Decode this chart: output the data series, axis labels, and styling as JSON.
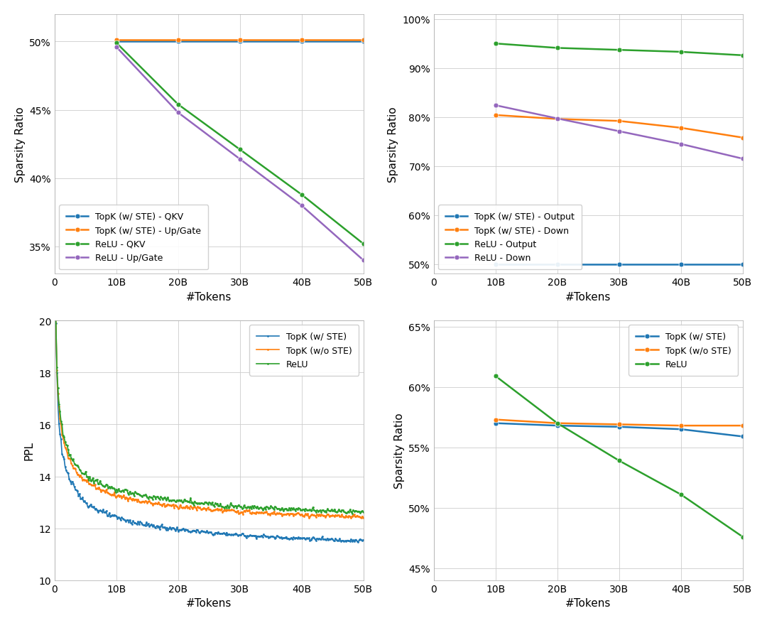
{
  "colors": {
    "blue": "#1f77b4",
    "orange": "#ff7f0e",
    "green": "#2ca02c",
    "purple": "#9467bd"
  },
  "top_left": {
    "xlabel": "#Tokens",
    "ylabel": "Sparsity Ratio",
    "xlim": [
      0,
      50000000000
    ],
    "ylim": [
      0.33,
      0.52
    ],
    "yticks": [
      0.35,
      0.4,
      0.45,
      0.5
    ],
    "xticks": [
      0,
      10000000000,
      20000000000,
      30000000000,
      40000000000,
      50000000000
    ],
    "xticklabels": [
      "0",
      "10B",
      "20B",
      "30B",
      "40B",
      "50B"
    ],
    "series": [
      {
        "label": "TopK (w/ STE) - QKV",
        "color": "#1f77b4",
        "x": [
          10000000000,
          20000000000,
          30000000000,
          40000000000,
          50000000000
        ],
        "y": [
          0.5,
          0.5,
          0.5,
          0.5,
          0.5
        ]
      },
      {
        "label": "TopK (w/ STE) - Up/Gate",
        "color": "#ff7f0e",
        "x": [
          10000000000,
          20000000000,
          30000000000,
          40000000000,
          50000000000
        ],
        "y": [
          0.501,
          0.501,
          0.501,
          0.501,
          0.501
        ]
      },
      {
        "label": "ReLU - QKV",
        "color": "#2ca02c",
        "x": [
          10000000000,
          20000000000,
          30000000000,
          40000000000,
          50000000000
        ],
        "y": [
          0.499,
          0.454,
          0.421,
          0.388,
          0.352
        ]
      },
      {
        "label": "ReLU - Up/Gate",
        "color": "#9467bd",
        "x": [
          10000000000,
          20000000000,
          30000000000,
          40000000000,
          50000000000
        ],
        "y": [
          0.496,
          0.448,
          0.414,
          0.38,
          0.34
        ]
      }
    ],
    "legend_loc": "lower left"
  },
  "top_right": {
    "xlabel": "#Tokens",
    "ylabel": "Sparsity Ratio",
    "xlim": [
      0,
      50000000000
    ],
    "ylim": [
      0.48,
      1.01
    ],
    "yticks": [
      0.5,
      0.6,
      0.7,
      0.8,
      0.9,
      1.0
    ],
    "xticks": [
      0,
      10000000000,
      20000000000,
      30000000000,
      40000000000,
      50000000000
    ],
    "xticklabels": [
      "0",
      "10B",
      "20B",
      "30B",
      "40B",
      "50B"
    ],
    "series": [
      {
        "label": "TopK (w/ STE) - Output",
        "color": "#1f77b4",
        "x": [
          10000000000,
          20000000000,
          30000000000,
          40000000000,
          50000000000
        ],
        "y": [
          0.5,
          0.5,
          0.5,
          0.5,
          0.5
        ]
      },
      {
        "label": "TopK (w/ STE) - Down",
        "color": "#ff7f0e",
        "x": [
          10000000000,
          20000000000,
          30000000000,
          40000000000,
          50000000000
        ],
        "y": [
          0.804,
          0.796,
          0.792,
          0.778,
          0.758
        ]
      },
      {
        "label": "ReLU - Output",
        "color": "#2ca02c",
        "x": [
          10000000000,
          20000000000,
          30000000000,
          40000000000,
          50000000000
        ],
        "y": [
          0.95,
          0.941,
          0.937,
          0.933,
          0.926
        ]
      },
      {
        "label": "ReLU - Down",
        "color": "#9467bd",
        "x": [
          10000000000,
          20000000000,
          30000000000,
          40000000000,
          50000000000
        ],
        "y": [
          0.824,
          0.797,
          0.771,
          0.745,
          0.715
        ]
      }
    ],
    "legend_loc": "lower left"
  },
  "bottom_left": {
    "xlabel": "#Tokens",
    "ylabel": "PPL",
    "xlim": [
      0,
      50000000000
    ],
    "ylim": [
      10,
      20
    ],
    "yticks": [
      10,
      12,
      14,
      16,
      18,
      20
    ],
    "xticks": [
      0,
      10000000000,
      20000000000,
      30000000000,
      40000000000,
      50000000000
    ],
    "xticklabels": [
      "0",
      "10B",
      "20B",
      "30B",
      "40B",
      "50B"
    ],
    "ppl_series": [
      {
        "label": "TopK (w/ STE)",
        "color": "#1f77b4",
        "start": 20.0,
        "end": 10.6,
        "decay": 0.42,
        "noise": 0.1
      },
      {
        "label": "TopK (w/o STE)",
        "color": "#ff7f0e",
        "start": 20.0,
        "end": 11.5,
        "decay": 0.4,
        "noise": 0.1
      },
      {
        "label": "ReLU",
        "color": "#2ca02c",
        "start": 20.0,
        "end": 11.6,
        "decay": 0.38,
        "noise": 0.11
      }
    ],
    "legend_loc": "upper right"
  },
  "bottom_right": {
    "xlabel": "#Tokens",
    "ylabel": "Sparsity Ratio",
    "xlim": [
      0,
      50000000000
    ],
    "ylim": [
      0.44,
      0.655
    ],
    "yticks": [
      0.45,
      0.5,
      0.55,
      0.6,
      0.65
    ],
    "xticks": [
      0,
      10000000000,
      20000000000,
      30000000000,
      40000000000,
      50000000000
    ],
    "xticklabels": [
      "0",
      "10B",
      "20B",
      "30B",
      "40B",
      "50B"
    ],
    "series": [
      {
        "label": "TopK (w/ STE)",
        "color": "#1f77b4",
        "x": [
          10000000000,
          20000000000,
          30000000000,
          40000000000,
          50000000000
        ],
        "y": [
          0.57,
          0.568,
          0.567,
          0.565,
          0.559
        ]
      },
      {
        "label": "TopK (w/o STE)",
        "color": "#ff7f0e",
        "x": [
          10000000000,
          20000000000,
          30000000000,
          40000000000,
          50000000000
        ],
        "y": [
          0.573,
          0.57,
          0.569,
          0.568,
          0.568
        ]
      },
      {
        "label": "ReLU",
        "color": "#2ca02c",
        "x": [
          10000000000,
          20000000000,
          30000000000,
          40000000000,
          50000000000
        ],
        "y": [
          0.609,
          0.57,
          0.539,
          0.511,
          0.476
        ]
      }
    ],
    "legend_loc": "upper right"
  }
}
